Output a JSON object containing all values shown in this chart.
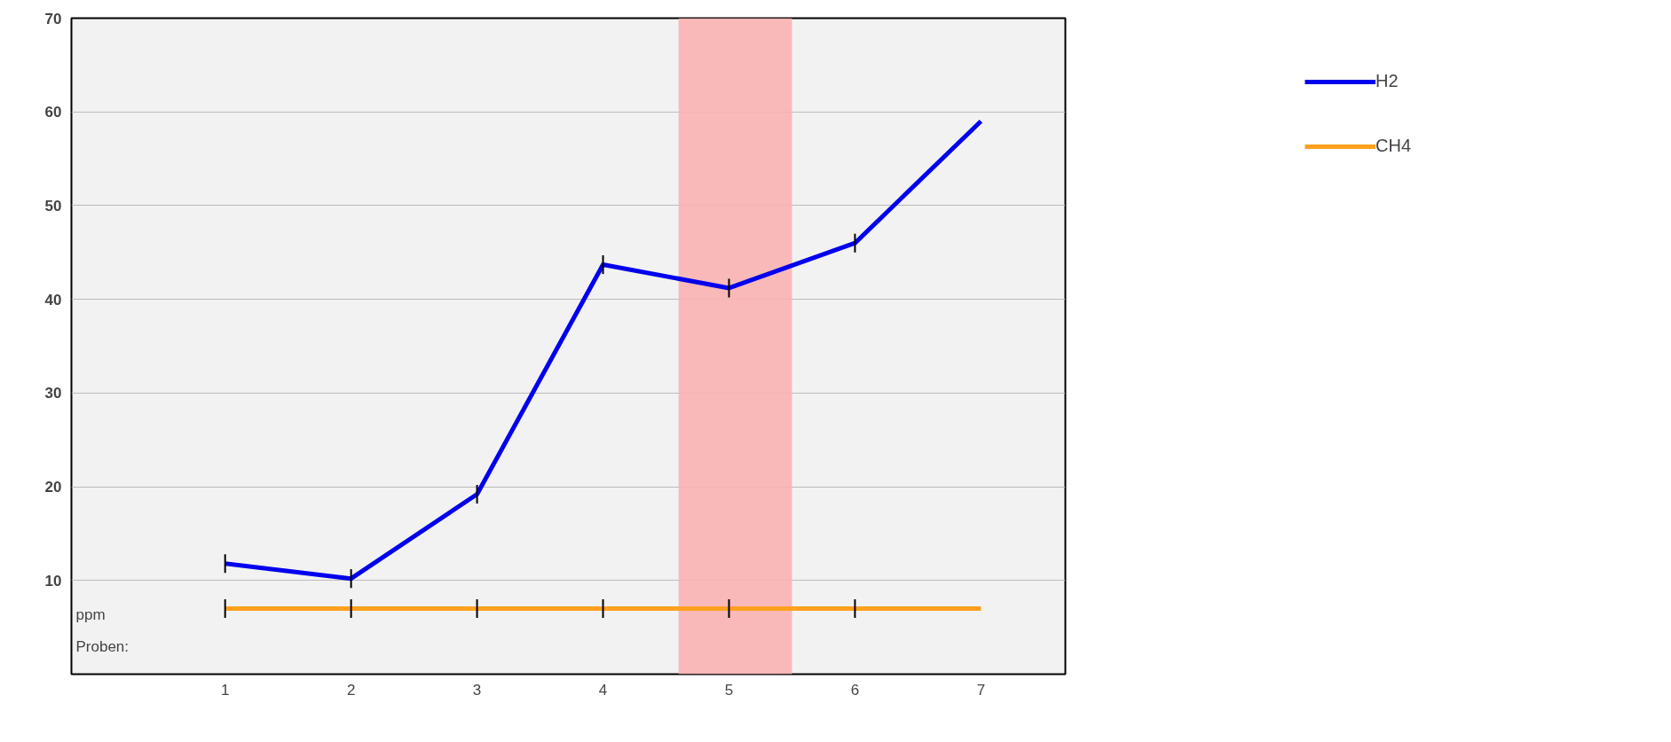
{
  "chart_data": {
    "type": "line",
    "xlabel": "Proben:",
    "ylabel": "ppm",
    "x": [
      1,
      2,
      3,
      4,
      5,
      6,
      7
    ],
    "series": [
      {
        "name": "H2",
        "color": "#0000ee",
        "values": [
          11.8,
          10.2,
          19.2,
          43.7,
          41.2,
          46.0,
          59.0
        ],
        "errors": [
          1,
          1,
          1,
          1,
          1,
          1,
          null
        ]
      },
      {
        "name": "CH4",
        "color": "#ffa01e",
        "values": [
          7.0,
          7.0,
          7.0,
          7.0,
          7.0,
          7.0,
          7.0
        ],
        "errors": [
          1,
          1,
          1,
          1,
          1,
          1,
          null
        ]
      }
    ],
    "xlim": [
      -0.22,
      7.67
    ],
    "xticks": [
      1,
      2,
      3,
      4,
      5,
      6,
      7
    ],
    "ylim": [
      0,
      70
    ],
    "yticks": [
      10,
      20,
      30,
      40,
      50,
      60,
      70
    ],
    "bands": [
      {
        "axis": "x",
        "from": 4.6,
        "to": 5.5,
        "color": "#f9b3b3"
      }
    ],
    "grid": "y",
    "legend": "top right",
    "line_style": "solid"
  }
}
